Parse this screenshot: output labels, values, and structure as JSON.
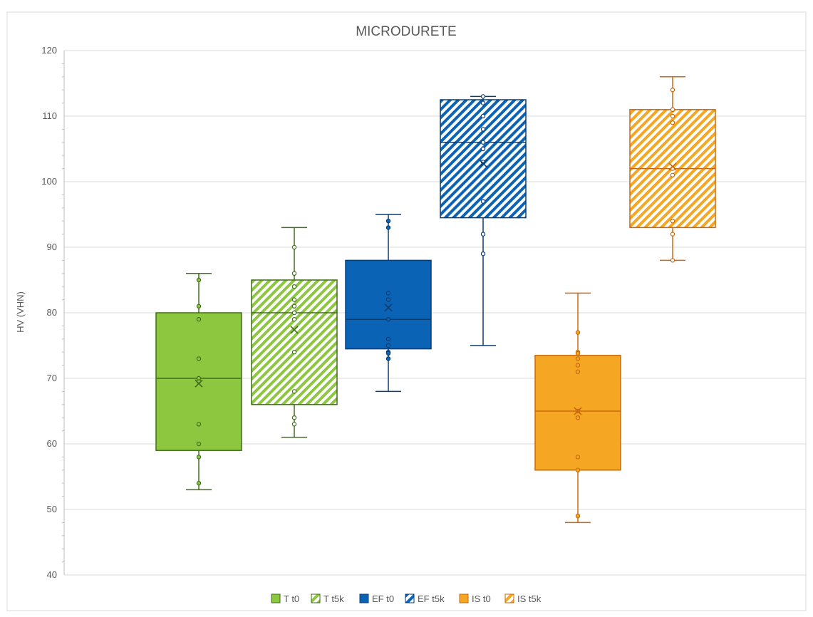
{
  "chart_data": {
    "type": "boxplot",
    "title": "MICRODURETE",
    "xlabel": "",
    "ylabel": "HV (VHN)",
    "ylim": [
      40,
      120
    ],
    "yticks": [
      40,
      50,
      60,
      70,
      80,
      90,
      100,
      110,
      120
    ],
    "grid": true,
    "legend_position": "bottom",
    "series": [
      {
        "name": "T t0",
        "color": "#8DC63F",
        "stroke": "#3F6E1C",
        "pattern": "solid",
        "whisker_min": 53,
        "q1": 59,
        "median": 70,
        "q3": 80,
        "whisker_max": 86,
        "mean": 69.2,
        "points": [
          85,
          81,
          79,
          73,
          70,
          69.5,
          63,
          60,
          58,
          54
        ]
      },
      {
        "name": "T t5k",
        "color": "#8DC63F",
        "stroke": "#3F6E1C",
        "pattern": "hatch",
        "whisker_min": 61,
        "q1": 66,
        "median": 80,
        "q3": 85,
        "whisker_max": 93,
        "mean": 77.4,
        "points": [
          90,
          86,
          84,
          82,
          81,
          80,
          79,
          74,
          68,
          64,
          63
        ]
      },
      {
        "name": "EF t0",
        "color": "#0B63B5",
        "stroke": "#0A3D73",
        "pattern": "solid",
        "whisker_min": 68,
        "q1": 74.5,
        "median": 79,
        "q3": 88,
        "whisker_max": 95,
        "mean": 80.8,
        "points": [
          94,
          93,
          83,
          82,
          79,
          76,
          75,
          74,
          73.8,
          73
        ]
      },
      {
        "name": "EF t5k",
        "color": "#0B63B5",
        "stroke": "#0A3D73",
        "pattern": "hatch",
        "whisker_min": 75,
        "q1": 94.5,
        "median": 106,
        "q3": 112.5,
        "whisker_max": 113,
        "mean": 102.8,
        "points": [
          113,
          112,
          110,
          108,
          106,
          105,
          103,
          97,
          92,
          89
        ]
      },
      {
        "name": "IS t0",
        "color": "#F5A623",
        "stroke": "#C96A10",
        "pattern": "solid",
        "whisker_min": 48,
        "q1": 56,
        "median": 65,
        "q3": 73.5,
        "whisker_max": 83,
        "mean": 65,
        "points": [
          77,
          74,
          73.8,
          73,
          72,
          71,
          65,
          64,
          58,
          56,
          49
        ]
      },
      {
        "name": "IS t5k",
        "color": "#F5A623",
        "stroke": "#C96A10",
        "pattern": "hatch",
        "whisker_min": 88,
        "q1": 93,
        "median": 102,
        "q3": 111,
        "whisker_max": 116,
        "mean": 102.3,
        "points": [
          114,
          111,
          110,
          109,
          102,
          101,
          94,
          92,
          88
        ]
      }
    ]
  }
}
